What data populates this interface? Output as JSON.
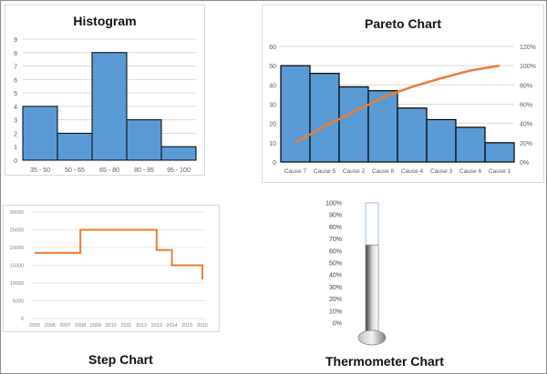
{
  "chart_data": [
    {
      "type": "bar",
      "title": "Histogram",
      "categories": [
        "35 - 50",
        "50 - 65",
        "65 - 80",
        "80 - 95",
        "95 - 100"
      ],
      "values": [
        4,
        2,
        8,
        3,
        1
      ],
      "ylim": [
        0,
        9
      ],
      "yticks": [
        0,
        1,
        2,
        3,
        4,
        5,
        6,
        7,
        8,
        9
      ],
      "grid": true,
      "colors": {
        "bar": "#5b9bd5",
        "edge": "#000000"
      }
    },
    {
      "type": "bar",
      "title": "Pareto Chart",
      "categories": [
        "Cause 7",
        "Cause 5",
        "Cause 2",
        "Cause 8",
        "Cause 4",
        "Cause 3",
        "Cause 6",
        "Cause 1"
      ],
      "values": [
        50,
        46,
        39,
        37,
        28,
        22,
        18,
        10
      ],
      "cumulative_percent": [
        20,
        37,
        52,
        67,
        78,
        87,
        95,
        100
      ],
      "ylim": [
        0,
        60
      ],
      "yticks": [
        0,
        10,
        20,
        30,
        40,
        50,
        60
      ],
      "y2lim": [
        0,
        120
      ],
      "y2ticks": [
        "0%",
        "20%",
        "40%",
        "60%",
        "80%",
        "100%",
        "120%"
      ],
      "grid": true,
      "colors": {
        "bar": "#5b9bd5",
        "edge": "#000000",
        "line": "#ed7d31"
      }
    },
    {
      "type": "line",
      "title": "Step Chart",
      "x": [
        "2005",
        "2006",
        "2007",
        "2008",
        "2009",
        "2010",
        "2011",
        "2012",
        "2013",
        "2014",
        "2015",
        "2016"
      ],
      "steps": [
        {
          "x": 2005,
          "y": 18500
        },
        {
          "x": 2008,
          "y": 18500
        },
        {
          "x": 2008,
          "y": 25000
        },
        {
          "x": 2013,
          "y": 25000
        },
        {
          "x": 2013,
          "y": 19300
        },
        {
          "x": 2014,
          "y": 19300
        },
        {
          "x": 2014,
          "y": 15000
        },
        {
          "x": 2016,
          "y": 15000
        },
        {
          "x": 2016,
          "y": 11000
        }
      ],
      "ylim": [
        0,
        30000
      ],
      "yticks": [
        "0",
        "5000",
        "10000",
        "15000",
        "20000",
        "25000",
        "30000"
      ],
      "grid": true,
      "colors": {
        "line": "#ed7d31"
      }
    },
    {
      "type": "bar",
      "title": "Thermometer Chart",
      "value_percent": 65,
      "ylim": [
        0,
        100
      ],
      "yticks": [
        "0%",
        "10%",
        "20%",
        "30%",
        "40%",
        "50%",
        "60%",
        "70%",
        "80%",
        "90%",
        "100%"
      ],
      "colors": {
        "tube": "#9dc3e6",
        "fill_dark": "#404040",
        "fill_light": "#f2f2f2"
      }
    }
  ]
}
